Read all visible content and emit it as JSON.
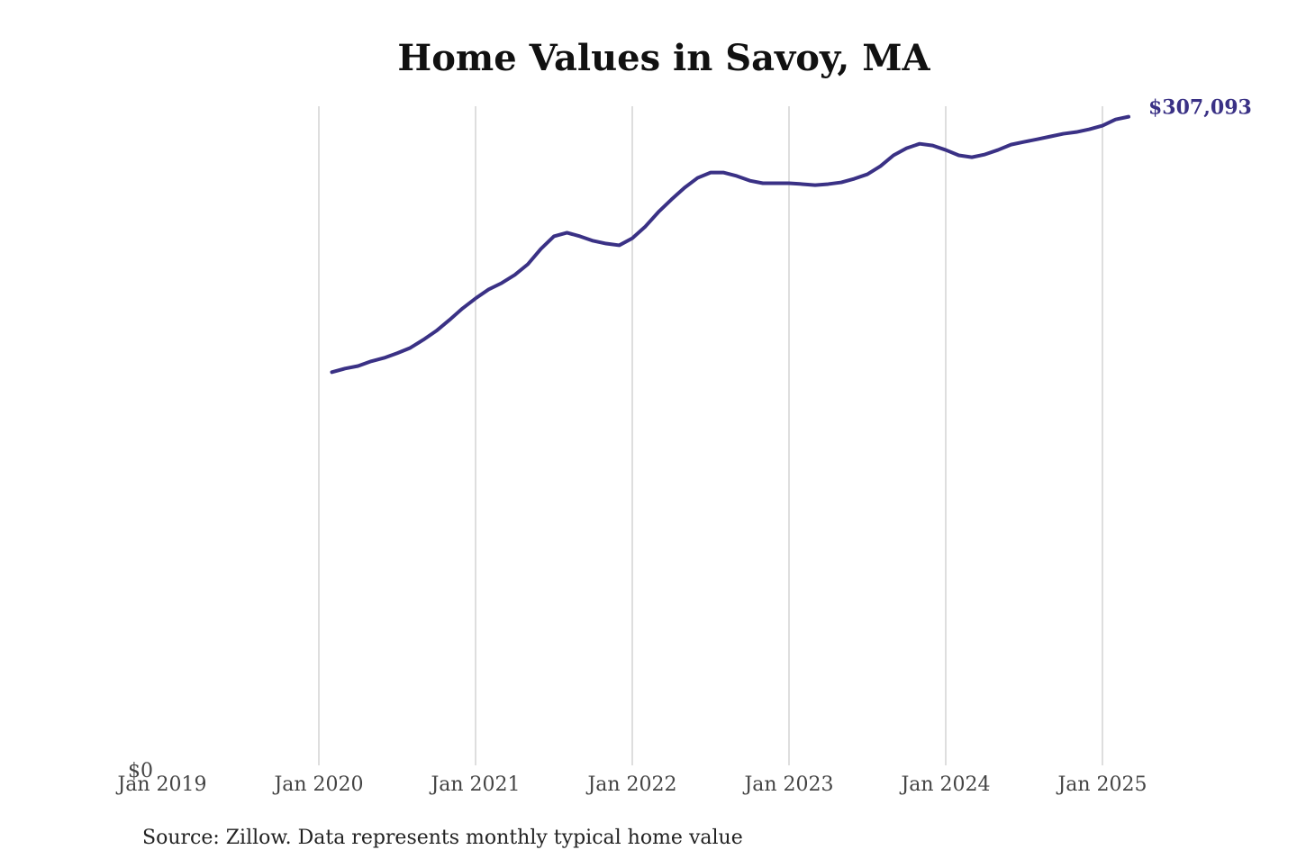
{
  "chart_data": {
    "type": "line",
    "title": "Home Values in Savoy, MA",
    "source": "Source: Zillow. Data represents monthly typical home value",
    "x": [
      "2020-02",
      "2020-03",
      "2020-04",
      "2020-05",
      "2020-06",
      "2020-07",
      "2020-08",
      "2020-09",
      "2020-10",
      "2020-11",
      "2020-12",
      "2021-01",
      "2021-02",
      "2021-03",
      "2021-04",
      "2021-05",
      "2021-06",
      "2021-07",
      "2021-08",
      "2021-09",
      "2021-10",
      "2021-11",
      "2021-12",
      "2022-01",
      "2022-02",
      "2022-03",
      "2022-04",
      "2022-05",
      "2022-06",
      "2022-07",
      "2022-08",
      "2022-09",
      "2022-10",
      "2022-11",
      "2022-12",
      "2023-01",
      "2023-02",
      "2023-03",
      "2023-04",
      "2023-05",
      "2023-06",
      "2023-07",
      "2023-08",
      "2023-09",
      "2023-10",
      "2023-11",
      "2023-12",
      "2024-01",
      "2024-02",
      "2024-03",
      "2024-04",
      "2024-05",
      "2024-06",
      "2024-07",
      "2024-08",
      "2024-09",
      "2024-10",
      "2024-11",
      "2024-12",
      "2025-01",
      "2025-02",
      "2025-03"
    ],
    "series": [
      {
        "name": "Savoy, MA",
        "color": "#3a3185",
        "values": [
          187300,
          189000,
          190200,
          192400,
          194000,
          196200,
          198700,
          202500,
          206700,
          211800,
          217200,
          221900,
          226100,
          229100,
          232900,
          237900,
          245100,
          251000,
          252700,
          251000,
          248900,
          247600,
          246800,
          250100,
          255600,
          262400,
          268300,
          273800,
          278400,
          280900,
          280900,
          279300,
          277100,
          275900,
          275900,
          275900,
          275500,
          275000,
          275500,
          276300,
          278000,
          280100,
          283900,
          289000,
          292300,
          294400,
          293600,
          291500,
          289000,
          288100,
          289400,
          291500,
          294000,
          295300,
          296500,
          297800,
          299100,
          299900,
          301200,
          302900,
          305800,
          307093
        ],
        "value_labels": [
          null,
          null,
          null,
          null,
          null,
          null,
          null,
          null,
          null,
          null,
          null,
          null,
          null,
          null,
          null,
          null,
          null,
          null,
          null,
          null,
          null,
          null,
          null,
          null,
          null,
          null,
          null,
          null,
          null,
          null,
          null,
          null,
          null,
          null,
          null,
          null,
          null,
          null,
          null,
          null,
          null,
          null,
          null,
          null,
          null,
          null,
          null,
          null,
          null,
          null,
          null,
          null,
          null,
          null,
          null,
          null,
          null,
          null,
          null,
          null,
          null,
          "$307,093"
        ]
      }
    ],
    "xlim": [
      "2019-01",
      "2025-03"
    ],
    "xticks": [
      {
        "value": "2019-01",
        "label": "Jan 2019"
      },
      {
        "value": "2020-01",
        "label": "Jan 2020"
      },
      {
        "value": "2021-01",
        "label": "Jan 2021"
      },
      {
        "value": "2022-01",
        "label": "Jan 2022"
      },
      {
        "value": "2023-01",
        "label": "Jan 2023"
      },
      {
        "value": "2024-01",
        "label": "Jan 2024"
      },
      {
        "value": "2025-01",
        "label": "Jan 2025"
      }
    ],
    "ylim": [
      0,
      312000
    ],
    "yticks": [
      {
        "value": 0,
        "label": "$0"
      }
    ],
    "grid": "x"
  }
}
